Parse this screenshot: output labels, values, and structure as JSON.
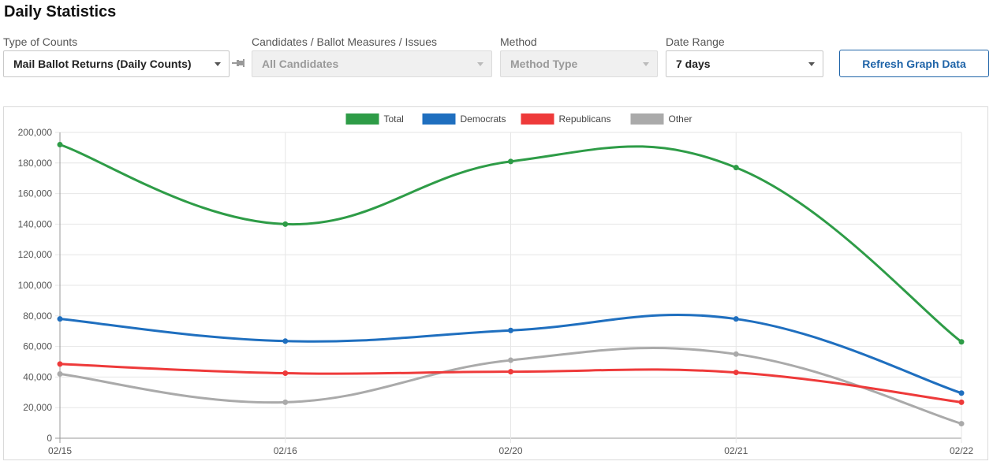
{
  "header": {
    "title": "Daily Statistics"
  },
  "filters": {
    "type_of_counts": {
      "label": "Type of Counts",
      "value": "Mail Ballot Returns (Daily Counts)"
    },
    "candidates": {
      "label": "Candidates / Ballot Measures / Issues",
      "value": "All Candidates"
    },
    "method": {
      "label": "Method",
      "value": "Method Type"
    },
    "date_range": {
      "label": "Date Range",
      "value": "7 days"
    }
  },
  "actions": {
    "refresh_label": "Refresh Graph Data"
  },
  "chart_data": {
    "type": "line",
    "categories": [
      "02/15",
      "02/16",
      "02/20",
      "02/21",
      "02/22"
    ],
    "ylim": [
      0,
      200000
    ],
    "yticks": [
      0,
      20000,
      40000,
      60000,
      80000,
      100000,
      120000,
      140000,
      160000,
      180000,
      200000
    ],
    "grid": true,
    "legend_position": "top-center",
    "series": [
      {
        "name": "Total",
        "color": "#2e9c47",
        "values": [
          192000,
          140000,
          181000,
          177000,
          63000
        ]
      },
      {
        "name": "Democrats",
        "color": "#1f6fbf",
        "values": [
          78000,
          63500,
          70500,
          78000,
          29500
        ]
      },
      {
        "name": "Republicans",
        "color": "#ee3a3a",
        "values": [
          48500,
          42500,
          43500,
          43000,
          23500
        ]
      },
      {
        "name": "Other",
        "color": "#aaaaaa",
        "values": [
          42000,
          23500,
          51000,
          55000,
          9500
        ]
      }
    ]
  }
}
